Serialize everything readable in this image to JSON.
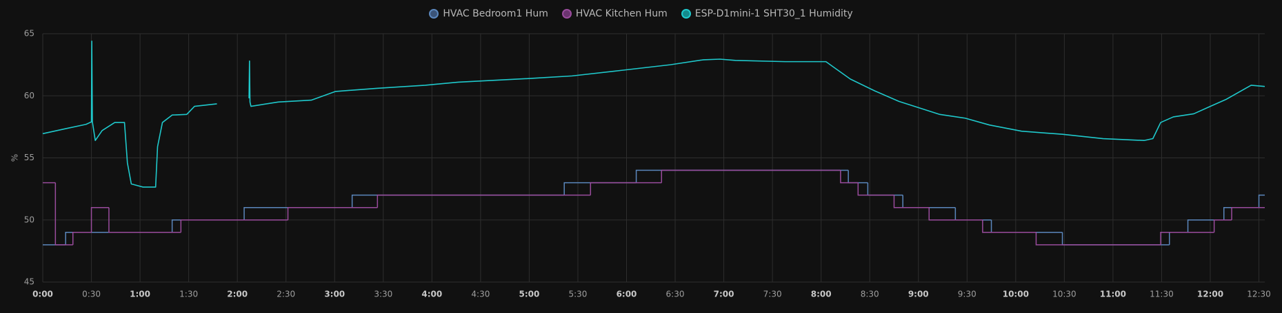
{
  "chart_data": {
    "type": "line",
    "y_label": "%",
    "xlim": [
      0,
      12.56
    ],
    "ylim": [
      45,
      65
    ],
    "yticks": [
      45,
      50,
      55,
      60,
      65
    ],
    "grid": true,
    "legend": "top",
    "xticks": [
      {
        "value": 0,
        "label": "0:00"
      },
      {
        "value": 0.5,
        "label": "0:30"
      },
      {
        "value": 1,
        "label": "1:00"
      },
      {
        "value": 1.5,
        "label": "1:30"
      },
      {
        "value": 2,
        "label": "2:00"
      },
      {
        "value": 2.5,
        "label": "2:30"
      },
      {
        "value": 3,
        "label": "3:00"
      },
      {
        "value": 3.5,
        "label": "3:30"
      },
      {
        "value": 4,
        "label": "4:00"
      },
      {
        "value": 4.5,
        "label": "4:30"
      },
      {
        "value": 5,
        "label": "5:00"
      },
      {
        "value": 5.5,
        "label": "5:30"
      },
      {
        "value": 6,
        "label": "6:00"
      },
      {
        "value": 6.5,
        "label": "6:30"
      },
      {
        "value": 7,
        "label": "7:00"
      },
      {
        "value": 7.5,
        "label": "7:30"
      },
      {
        "value": 8,
        "label": "8:00"
      },
      {
        "value": 8.5,
        "label": "8:30"
      },
      {
        "value": 9,
        "label": "9:00"
      },
      {
        "value": 9.5,
        "label": "9:30"
      },
      {
        "value": 10,
        "label": "10:00"
      },
      {
        "value": 10.5,
        "label": "10:30"
      },
      {
        "value": 11,
        "label": "11:00"
      },
      {
        "value": 11.5,
        "label": "11:30"
      },
      {
        "value": 12,
        "label": "12:00"
      },
      {
        "value": 12.5,
        "label": "12:30"
      }
    ],
    "series": [
      {
        "name": "HVAC Bedroom1 Hum",
        "color": "#5b87bd",
        "legend_color": "#3b5478",
        "step": true,
        "x": [
          0,
          0.235,
          1.33,
          2.07,
          3.18,
          5.36,
          6.1,
          8.28,
          8.48,
          8.84,
          9.38,
          9.75,
          10.48,
          11.58,
          11.77,
          12.14,
          12.5,
          12.56
        ],
        "values": [
          48,
          49,
          50,
          51,
          52,
          53,
          54,
          53,
          52,
          51,
          50,
          49,
          48,
          49,
          50,
          51,
          52,
          52
        ]
      },
      {
        "name": "HVAC Kitchen Hum",
        "color": "#9a4c9d",
        "legend_color": "#6b3470",
        "step": true,
        "x": [
          0,
          0.13,
          0.31,
          0.5,
          0.68,
          1.42,
          2.52,
          3.44,
          5.63,
          6.36,
          8.2,
          8.38,
          8.75,
          9.11,
          9.66,
          10.21,
          11.49,
          12.04,
          12.22,
          12.56
        ],
        "values": [
          53,
          48,
          49,
          51,
          49,
          50,
          51,
          52,
          53,
          54,
          53,
          52,
          51,
          50,
          49,
          48,
          49,
          50,
          51,
          51
        ]
      },
      {
        "name": "ESP-D1mini-1 SHT30_1 Humidity",
        "color": "#1fc9cc",
        "legend_color": "#148a8c",
        "step": false,
        "x": [
          0,
          0.235,
          0.445,
          0.5,
          0.504,
          0.51,
          0.54,
          0.61,
          0.74,
          0.84,
          0.87,
          0.91,
          1.03,
          1.16,
          1.18,
          1.23,
          1.33,
          1.48,
          1.56,
          1.79,
          1.95,
          2.12,
          2.125,
          2.13,
          2.14,
          2.42,
          2.76,
          3.01,
          3.43,
          3.93,
          4.27,
          5.02,
          5.44,
          5.95,
          6.45,
          6.79,
          6.96,
          7.12,
          7.63,
          8.05,
          8.13,
          8.3,
          8.55,
          8.8,
          9.06,
          9.22,
          9.48,
          9.73,
          10.06,
          10.48,
          10.9,
          11.32,
          11.41,
          11.49,
          11.62,
          11.83,
          12.0,
          12.16,
          12.42,
          12.56
        ],
        "values": [
          56.95,
          57.35,
          57.7,
          57.9,
          64.4,
          57.9,
          56.4,
          57.2,
          57.85,
          57.85,
          54.6,
          52.9,
          52.65,
          52.65,
          55.9,
          57.85,
          58.45,
          58.5,
          59.15,
          59.35,
          null,
          59.8,
          62.8,
          59.5,
          59.15,
          59.5,
          59.65,
          60.35,
          60.6,
          60.85,
          61.1,
          61.4,
          61.6,
          62.05,
          62.5,
          62.9,
          62.95,
          62.85,
          62.75,
          62.75,
          62.3,
          61.35,
          60.4,
          59.55,
          58.9,
          58.5,
          58.2,
          57.65,
          57.15,
          56.9,
          56.55,
          56.4,
          56.55,
          57.85,
          58.3,
          58.55,
          59.15,
          59.7,
          60.85,
          60.75
        ]
      }
    ]
  }
}
